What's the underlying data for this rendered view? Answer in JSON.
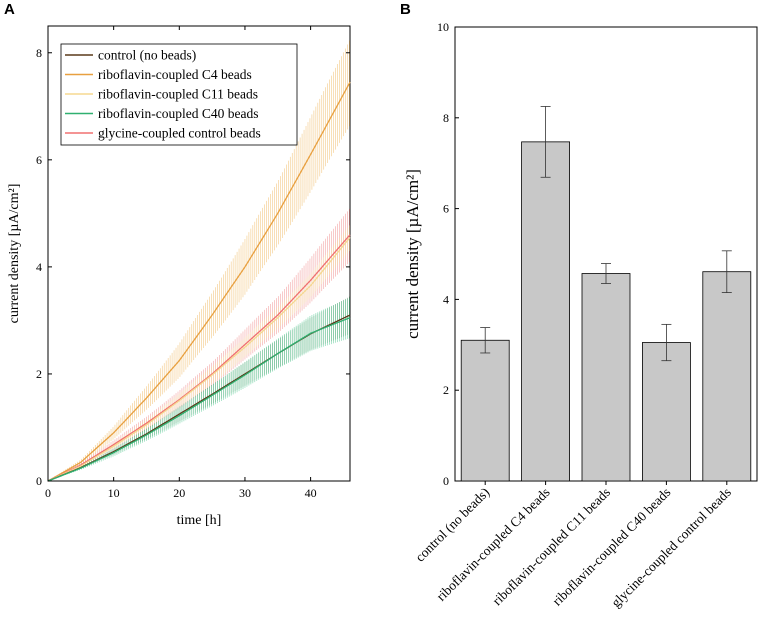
{
  "panels": {
    "left_letter": "A",
    "right_letter": "B"
  },
  "chart_data": [
    {
      "type": "line",
      "xlabel": "time [h]",
      "ylabel": "current density [µA/cm²]",
      "xlim": [
        0,
        46
      ],
      "ylim": [
        0,
        8.5
      ],
      "x_ticks": [
        "0",
        "10",
        "20",
        "30",
        "40"
      ],
      "y_ticks": [
        "0",
        "2",
        "4",
        "6",
        "8"
      ],
      "legend_position": "top-left",
      "series": [
        {
          "name": "control (no beads)",
          "color": "#5a3a1a",
          "band_color": "#6b8e6b",
          "x": [
            0,
            5,
            10,
            15,
            20,
            25,
            30,
            35,
            40,
            46
          ],
          "y": [
            0,
            0.25,
            0.55,
            0.88,
            1.25,
            1.62,
            2.0,
            2.38,
            2.75,
            3.1
          ],
          "err": [
            0,
            0.03,
            0.06,
            0.1,
            0.14,
            0.18,
            0.22,
            0.26,
            0.3,
            0.35
          ]
        },
        {
          "name": "riboflavin-coupled C4 beads",
          "color": "#e8a040",
          "band_color": "#f0b860",
          "x": [
            0,
            5,
            10,
            15,
            20,
            25,
            30,
            35,
            40,
            46
          ],
          "y": [
            0,
            0.35,
            0.9,
            1.55,
            2.25,
            3.1,
            4.0,
            5.0,
            6.1,
            7.45
          ],
          "err": [
            0,
            0.05,
            0.12,
            0.22,
            0.32,
            0.42,
            0.52,
            0.6,
            0.7,
            0.8
          ]
        },
        {
          "name": "riboflavin-coupled C11 beads",
          "color": "#f5d890",
          "band_color": "#f5e0a0",
          "x": [
            0,
            5,
            10,
            15,
            20,
            25,
            30,
            35,
            40,
            46
          ],
          "y": [
            0,
            0.28,
            0.65,
            1.05,
            1.5,
            1.98,
            2.5,
            3.05,
            3.65,
            4.55
          ],
          "err": [
            0,
            0.03,
            0.06,
            0.1,
            0.13,
            0.16,
            0.18,
            0.2,
            0.22,
            0.24
          ]
        },
        {
          "name": "riboflavin-coupled C40 beads",
          "color": "#30b070",
          "band_color": "#50c890",
          "x": [
            0,
            5,
            10,
            15,
            20,
            25,
            30,
            35,
            40,
            46
          ],
          "y": [
            0,
            0.24,
            0.53,
            0.86,
            1.22,
            1.6,
            1.98,
            2.38,
            2.76,
            3.05
          ],
          "err": [
            0,
            0.03,
            0.07,
            0.11,
            0.15,
            0.2,
            0.24,
            0.28,
            0.33,
            0.38
          ]
        },
        {
          "name": "glycine-coupled control beads",
          "color": "#f07070",
          "band_color": "#f08888",
          "x": [
            0,
            5,
            10,
            15,
            20,
            25,
            30,
            35,
            40,
            46
          ],
          "y": [
            0,
            0.3,
            0.68,
            1.08,
            1.52,
            2.0,
            2.55,
            3.1,
            3.75,
            4.6
          ],
          "err": [
            0,
            0.04,
            0.08,
            0.12,
            0.17,
            0.22,
            0.28,
            0.34,
            0.42,
            0.5
          ]
        }
      ]
    },
    {
      "type": "bar",
      "ylabel": "current density [µA/cm²]",
      "ylim": [
        0,
        10
      ],
      "y_ticks": [
        "0",
        "2",
        "4",
        "6",
        "8",
        "10"
      ],
      "categories": [
        "control (no beads)",
        "riboflavin-coupled C4 beads",
        "riboflavin-coupled C11 beads",
        "riboflavin-coupled C40 beads",
        "glycine-coupled control beads"
      ],
      "values": [
        3.1,
        7.47,
        4.57,
        3.05,
        4.61
      ],
      "errors": [
        0.28,
        0.78,
        0.22,
        0.4,
        0.46
      ],
      "bar_color": "#c8c8c8"
    }
  ]
}
